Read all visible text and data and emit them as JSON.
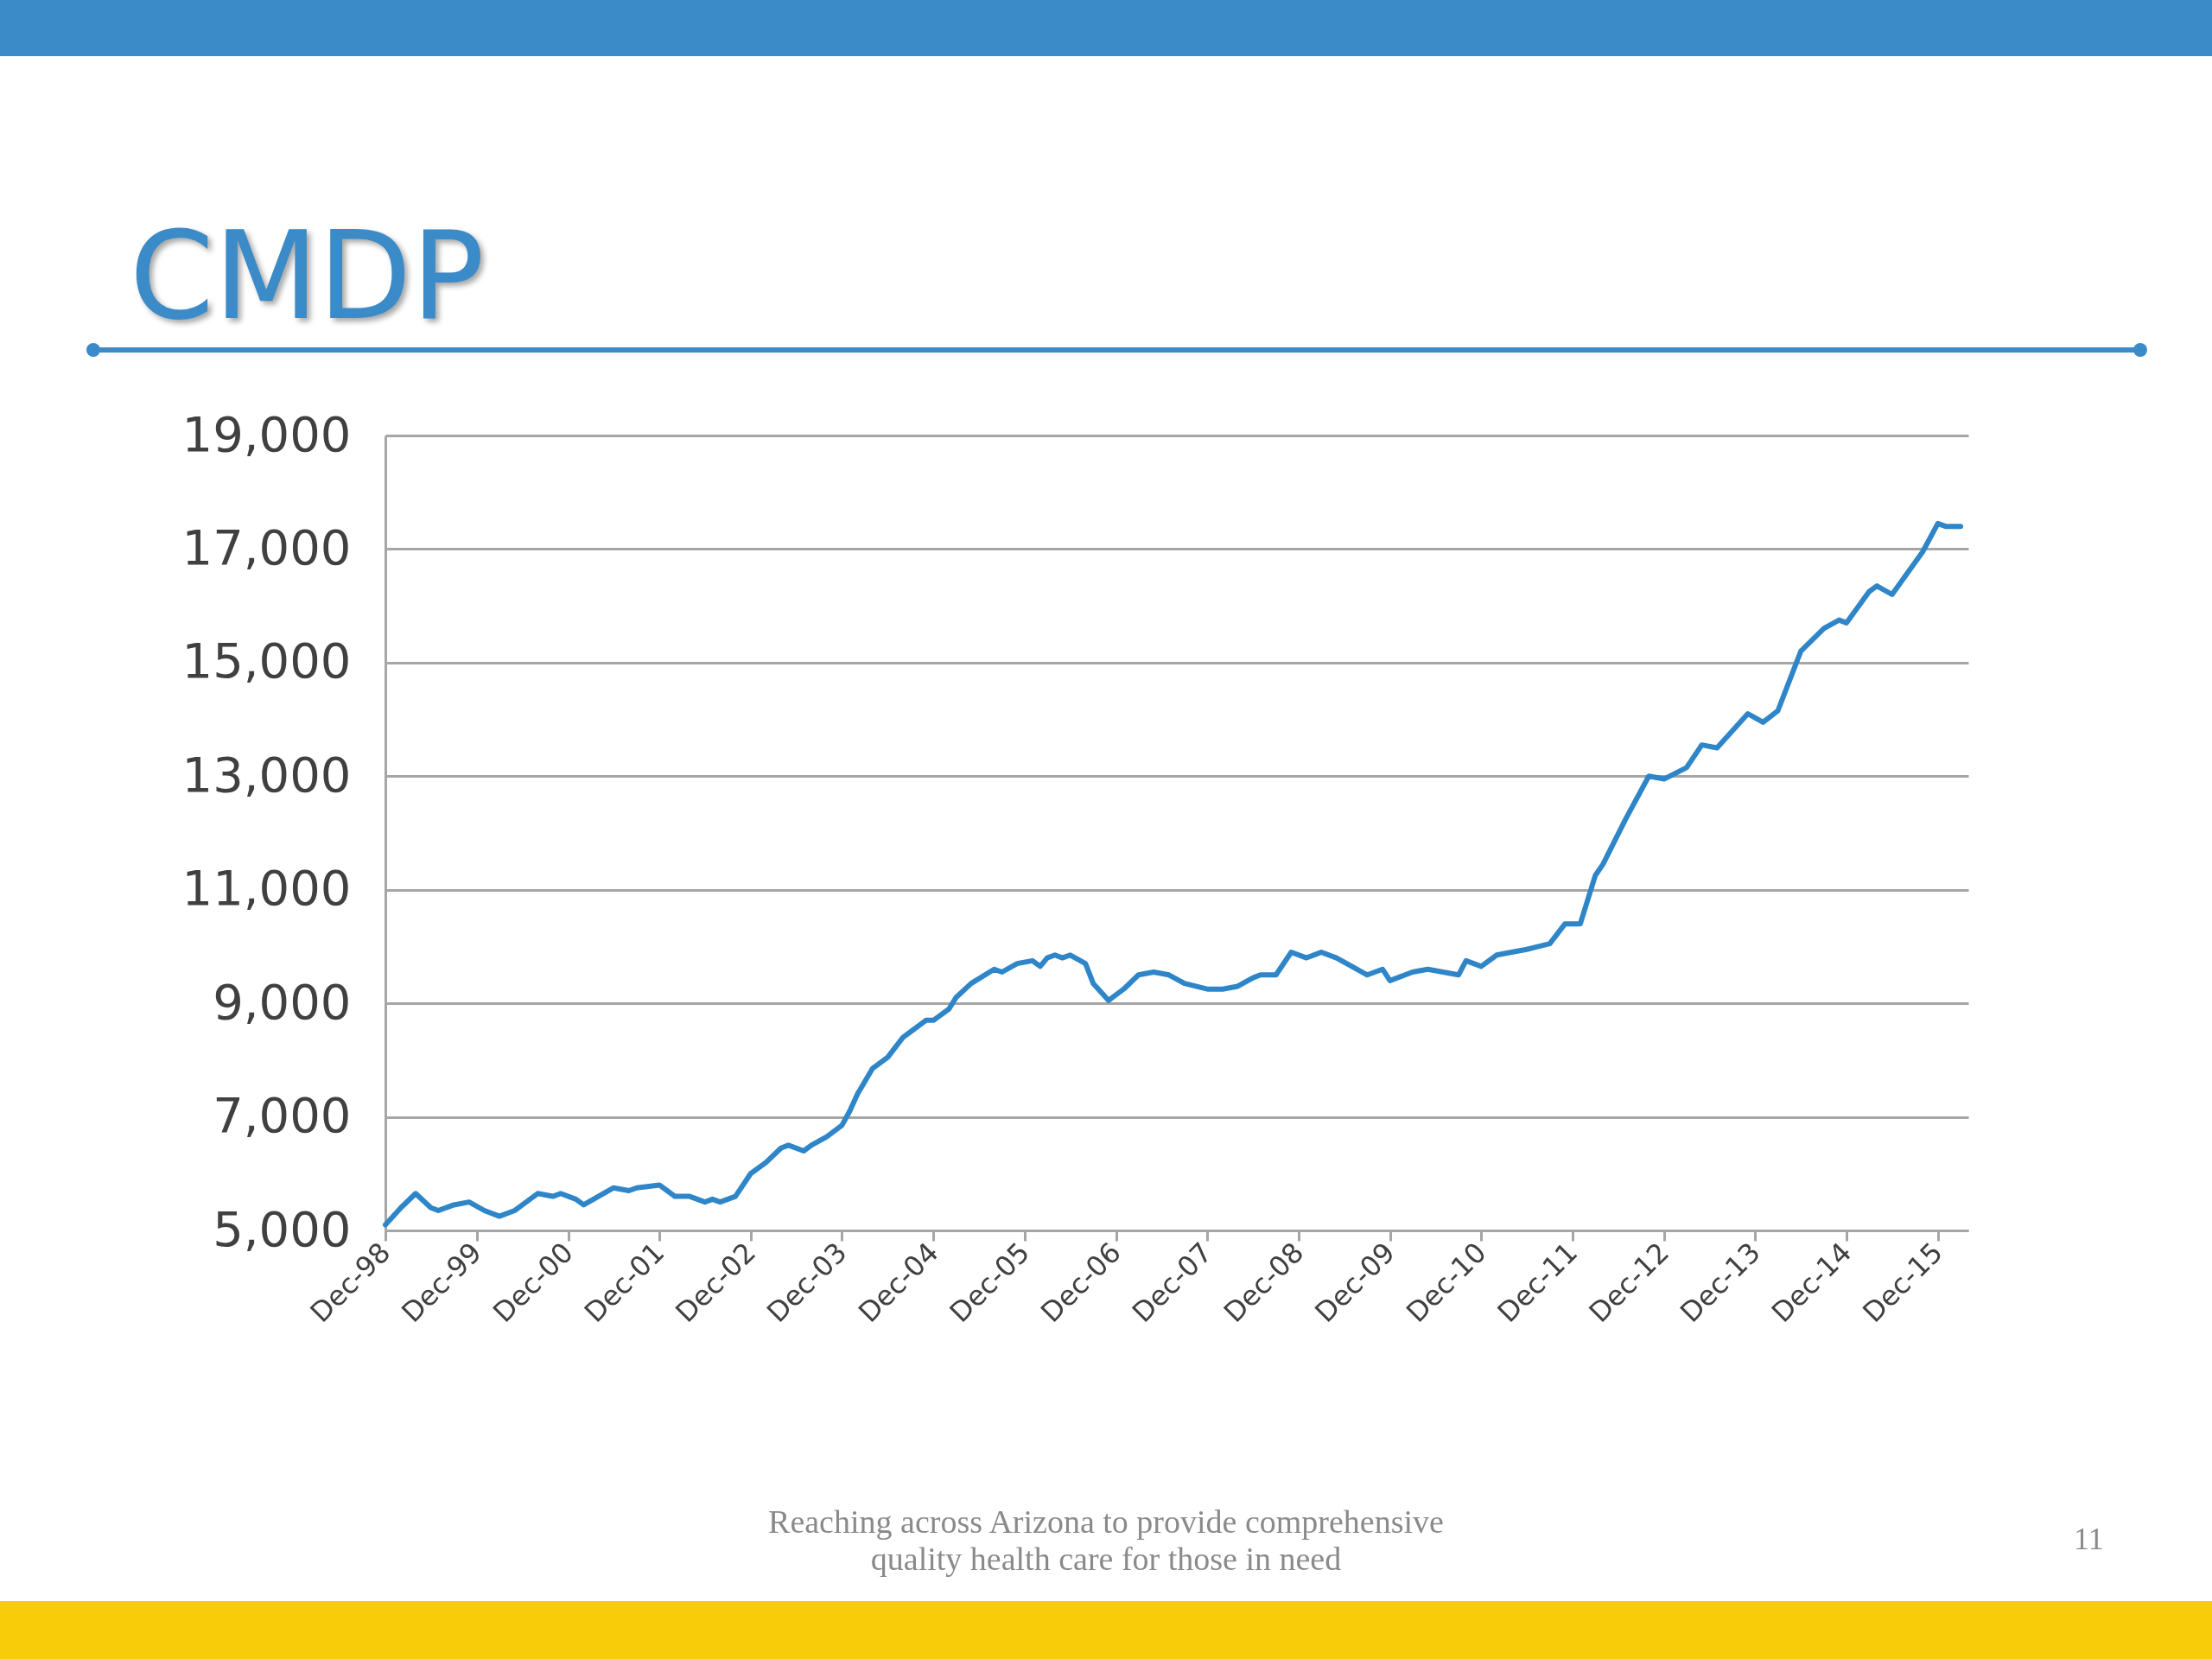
{
  "chart_data": {
    "type": "line",
    "title": "CMDP",
    "annotations": [
      "Reaching across Arizona to provide comprehensive quality health care for those in need",
      "11"
    ],
    "x": [
      "1998-12",
      "1999-02",
      "1999-04",
      "1999-06",
      "1999-07",
      "1999-09",
      "1999-11",
      "2000-01",
      "2000-03",
      "2000-05",
      "2000-06",
      "2000-08",
      "2000-10",
      "2000-11",
      "2001-01",
      "2001-02",
      "2001-04",
      "2001-06",
      "2001-08",
      "2001-09",
      "2001-12",
      "2002-01",
      "2002-02",
      "2002-04",
      "2002-06",
      "2002-07",
      "2002-08",
      "2002-10",
      "2002-12",
      "2003-02",
      "2003-04",
      "2003-05",
      "2003-07",
      "2003-08",
      "2003-10",
      "2003-12",
      "2004-01",
      "2004-02",
      "2004-04",
      "2004-06",
      "2004-08",
      "2004-09",
      "2004-11",
      "2004-12",
      "2005-02",
      "2005-03",
      "2005-05",
      "2005-08",
      "2005-09",
      "2005-11",
      "2006-01",
      "2006-02",
      "2006-03",
      "2006-04",
      "2006-05",
      "2006-06",
      "2006-08",
      "2006-09",
      "2006-11",
      "2007-01",
      "2007-03",
      "2007-05",
      "2007-07",
      "2007-09",
      "2007-12",
      "2008-02",
      "2008-04",
      "2008-06",
      "2008-07",
      "2008-09",
      "2008-11",
      "2009-01",
      "2009-03",
      "2009-05",
      "2009-07",
      "2009-09",
      "2009-11",
      "2009-12",
      "2010-03",
      "2010-05",
      "2010-07",
      "2010-09",
      "2010-10",
      "2010-12",
      "2011-02",
      "2011-04",
      "2011-06",
      "2011-09",
      "2011-11",
      "2012-01",
      "2012-03",
      "2012-04",
      "2012-07",
      "2012-10",
      "2012-12",
      "2013-03",
      "2013-05",
      "2013-07",
      "2013-11",
      "2014-01",
      "2014-03",
      "2014-06",
      "2014-09",
      "2014-11",
      "2014-12",
      "2015-03",
      "2015-04",
      "2015-06",
      "2015-10",
      "2015-12",
      "2016-01",
      "2016-03"
    ],
    "series": [
      {
        "color": "#2e86c8",
        "values": [
          5100,
          5400,
          5650,
          5400,
          5350,
          5450,
          5500,
          5350,
          5250,
          5350,
          5450,
          5650,
          5600,
          5650,
          5550,
          5450,
          5600,
          5750,
          5700,
          5750,
          5800,
          5700,
          5600,
          5600,
          5500,
          5550,
          5500,
          5600,
          6000,
          6200,
          6450,
          6500,
          6400,
          6500,
          6650,
          6850,
          7100,
          7400,
          7850,
          8050,
          8400,
          8500,
          8700,
          8700,
          8900,
          9100,
          9350,
          9600,
          9550,
          9700,
          9750,
          9650,
          9800,
          9850,
          9800,
          9850,
          9700,
          9350,
          9050,
          9250,
          9500,
          9550,
          9500,
          9350,
          9250,
          9250,
          9300,
          9450,
          9500,
          9500,
          9900,
          9800,
          9900,
          9800,
          9650,
          9500,
          9600,
          9400,
          9550,
          9600,
          9550,
          9500,
          9750,
          9650,
          9850,
          9900,
          9950,
          10050,
          10400,
          10400,
          11250,
          11450,
          12250,
          13000,
          12950,
          13150,
          13550,
          13500,
          14100,
          13950,
          14150,
          15200,
          15600,
          15750,
          15700,
          16250,
          16350,
          16200,
          16950,
          17450,
          17400,
          17400
        ]
      }
    ],
    "xlim": [
      "1998-12",
      "2016-04"
    ],
    "xticks": [
      {
        "value": "1998-12",
        "label": "Dec-98"
      },
      {
        "value": "1999-12",
        "label": "Dec-99"
      },
      {
        "value": "2000-12",
        "label": "Dec-00"
      },
      {
        "value": "2001-12",
        "label": "Dec-01"
      },
      {
        "value": "2002-12",
        "label": "Dec-02"
      },
      {
        "value": "2003-12",
        "label": "Dec-03"
      },
      {
        "value": "2004-12",
        "label": "Dec-04"
      },
      {
        "value": "2005-12",
        "label": "Dec-05"
      },
      {
        "value": "2006-12",
        "label": "Dec-06"
      },
      {
        "value": "2007-12",
        "label": "Dec-07"
      },
      {
        "value": "2008-12",
        "label": "Dec-08"
      },
      {
        "value": "2009-12",
        "label": "Dec-09"
      },
      {
        "value": "2010-12",
        "label": "Dec-10"
      },
      {
        "value": "2011-12",
        "label": "Dec-11"
      },
      {
        "value": "2012-12",
        "label": "Dec-12"
      },
      {
        "value": "2013-12",
        "label": "Dec-13"
      },
      {
        "value": "2014-12",
        "label": "Dec-14"
      },
      {
        "value": "2015-12",
        "label": "Dec-15"
      }
    ],
    "ylim": [
      5000,
      19000
    ],
    "yticks": [
      {
        "value": 5000,
        "label": "5,000"
      },
      {
        "value": 7000,
        "label": "7,000"
      },
      {
        "value": 9000,
        "label": "9,000"
      },
      {
        "value": 11000,
        "label": "11,000"
      },
      {
        "value": 13000,
        "label": "13,000"
      },
      {
        "value": 15000,
        "label": "15,000"
      },
      {
        "value": 17000,
        "label": "17,000"
      },
      {
        "value": 19000,
        "label": "19,000"
      }
    ],
    "grid": "y",
    "line_style": "solid"
  }
}
